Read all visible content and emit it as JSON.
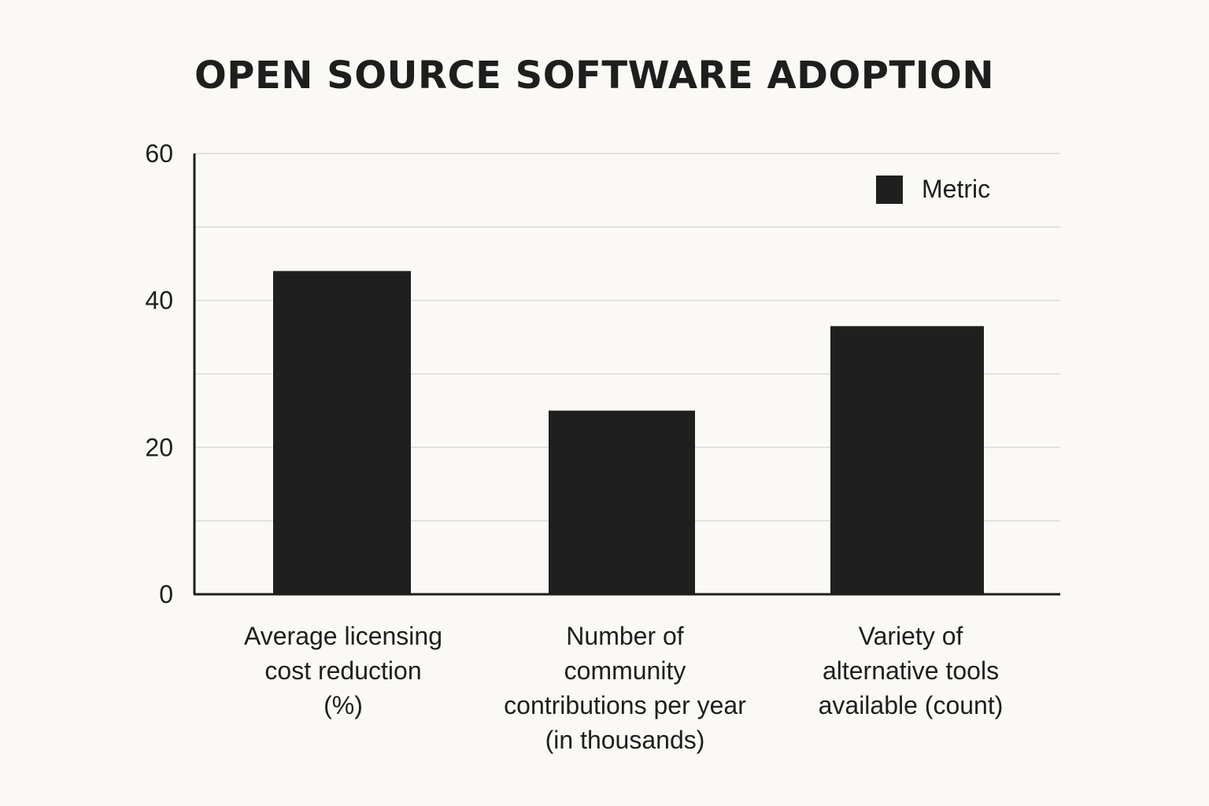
{
  "chart_data": {
    "type": "bar",
    "title": "OPEN SOURCE SOFTWARE ADOPTION",
    "categories": [
      "Average licensing cost reduction (%)",
      "Number of community contributions per year (in thousands)",
      "Variety of alternative tools available (count)"
    ],
    "category_lines": [
      [
        "Average licensing",
        "cost reduction",
        "(%)"
      ],
      [
        "Number of",
        "community",
        "contributions per year",
        "(in thousands)"
      ],
      [
        "Variety of",
        "alternative tools",
        "available (count)"
      ]
    ],
    "series": [
      {
        "name": "Metric",
        "values": [
          44,
          25,
          36.5
        ]
      }
    ],
    "yticks": [
      0,
      20,
      40,
      60
    ],
    "ylim": [
      0,
      60
    ],
    "grid": true,
    "legend": "top-right",
    "colors": {
      "bar": "#1f1f1f",
      "grid": "#d9d9d9",
      "axis": "#1e1e1e",
      "background": "#faf9f6"
    }
  }
}
